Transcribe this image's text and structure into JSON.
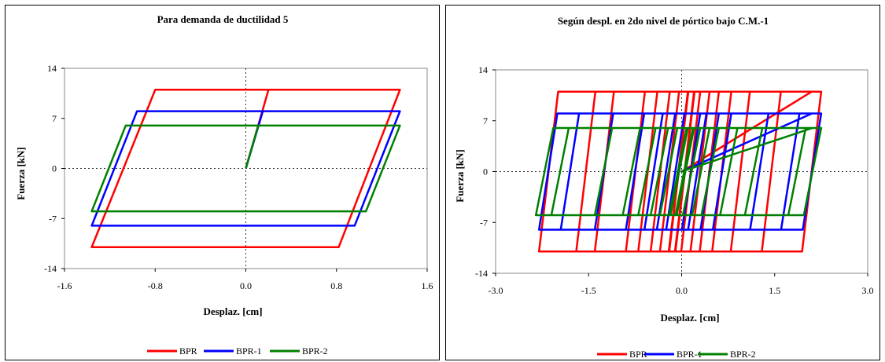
{
  "chart_data": [
    {
      "type": "line",
      "title": "Para demanda de ductilidad 5",
      "xlabel": "Desplaz. [cm]",
      "ylabel": "Fuerza [kN]",
      "xlim": [
        -1.6,
        1.6
      ],
      "ylim": [
        -14,
        14
      ],
      "xticks": [
        "-1.6",
        "-0.8",
        "0.0",
        "0.8",
        "1.6"
      ],
      "yticks": [
        "14",
        "7",
        "0",
        "-7",
        "-14"
      ],
      "grid": false,
      "zero_lines": "dotted",
      "legend_position": "bottom",
      "series": [
        {
          "name": "BPR",
          "color": "#ff0000",
          "x": [
            0,
            0.2,
            1.36,
            0.82,
            -1.36,
            -0.8,
            0.2
          ],
          "y": [
            0,
            11,
            11,
            -11,
            -11,
            11,
            11
          ]
        },
        {
          "name": "BPR-1",
          "color": "#0000ff",
          "x": [
            0,
            0.15,
            1.36,
            0.96,
            -1.36,
            -0.96,
            0.15
          ],
          "y": [
            0,
            8,
            8,
            -8,
            -8,
            8,
            8
          ]
        },
        {
          "name": "BPR-2",
          "color": "#008000",
          "x": [
            0,
            0.11,
            1.36,
            1.06,
            -1.36,
            -1.06,
            0.11
          ],
          "y": [
            0,
            6,
            6,
            -6,
            -6,
            6,
            6
          ]
        }
      ]
    },
    {
      "type": "line",
      "title": "Según despl. en 2do nivel de pórtico bajo C.M.-1",
      "xlabel": "Desplaz. [cm]",
      "ylabel": "Fuerza [kN]",
      "xlim": [
        -3.0,
        3.0
      ],
      "ylim": [
        -14,
        14
      ],
      "xticks": [
        "-3.0",
        "-1.5",
        "0.0",
        "1.5",
        "3.0"
      ],
      "yticks": [
        "14",
        "7",
        "0",
        "-7",
        "-14"
      ],
      "grid": false,
      "zero_lines": "dotted",
      "legend_position": "bottom",
      "series": [
        {
          "name": "BPR",
          "color": "#ff0000",
          "k": 0.154,
          "envelope": {
            "xmax": 2.25,
            "xmin": -2.3,
            "fy": 11
          },
          "loops": [
            [
              -2.3,
              2.25
            ],
            [
              -1.7,
              1.6
            ],
            [
              -1.4,
              1.1
            ],
            [
              -0.9,
              0.8
            ],
            [
              -0.7,
              0.6
            ],
            [
              -0.5,
              0.45
            ],
            [
              -0.35,
              0.3
            ],
            [
              -0.2,
              0.2
            ],
            [
              -0.1,
              0.1
            ]
          ]
        },
        {
          "name": "BPR-1",
          "color": "#0000ff",
          "k": 0.148,
          "envelope": {
            "xmax": 2.25,
            "xmin": -2.3,
            "fy": 8
          },
          "loops": [
            [
              -2.3,
              2.25
            ],
            [
              -1.95,
              1.9
            ],
            [
              -1.4,
              1.4
            ],
            [
              -0.9,
              0.8
            ],
            [
              -0.6,
              0.6
            ],
            [
              -0.4,
              0.4
            ],
            [
              -0.25,
              0.3
            ]
          ]
        },
        {
          "name": "BPR-2",
          "color": "#008000",
          "k": 0.14,
          "envelope": {
            "xmax": 2.25,
            "xmin": -2.35,
            "fy": 6
          },
          "loops": [
            [
              -2.35,
              2.25
            ],
            [
              -2.1,
              2.0
            ],
            [
              -1.4,
              1.3
            ],
            [
              -0.95,
              0.9
            ],
            [
              -0.7,
              0.6
            ],
            [
              -0.5,
              0.45
            ],
            [
              -0.35,
              0.3
            ],
            [
              -0.2,
              0.2
            ],
            [
              -0.1,
              0.1
            ]
          ]
        }
      ]
    }
  ]
}
